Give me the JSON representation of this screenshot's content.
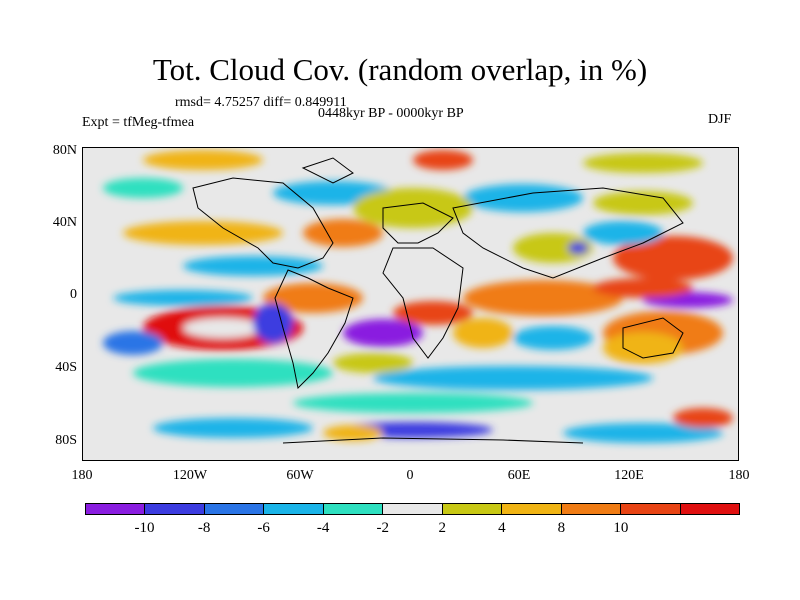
{
  "title": "Tot. Cloud Cov. (random overlap, in %)",
  "stats": "rmsd= 4.75257 diff= 0.849911",
  "experiment": "Expt = tfMeg-tfmea",
  "period": "0448kyr BP - 0000kyr BP",
  "season": "DJF",
  "y_ticks": [
    "80N",
    "40N",
    "0",
    "40S",
    "80S"
  ],
  "x_ticks": [
    "180",
    "120W",
    "60W",
    "0",
    "60E",
    "120E",
    "180"
  ],
  "colorbar": {
    "labels": [
      "-10",
      "-8",
      "-6",
      "-4",
      "-2",
      "2",
      "4",
      "8",
      "10"
    ],
    "colors": [
      "#8a1de0",
      "#3c3ce0",
      "#2a74e6",
      "#1ab4e8",
      "#2ee0c0",
      "#e8e8e8",
      "#c8c814",
      "#f0b414",
      "#f07c14",
      "#e84414",
      "#e01010"
    ]
  }
}
